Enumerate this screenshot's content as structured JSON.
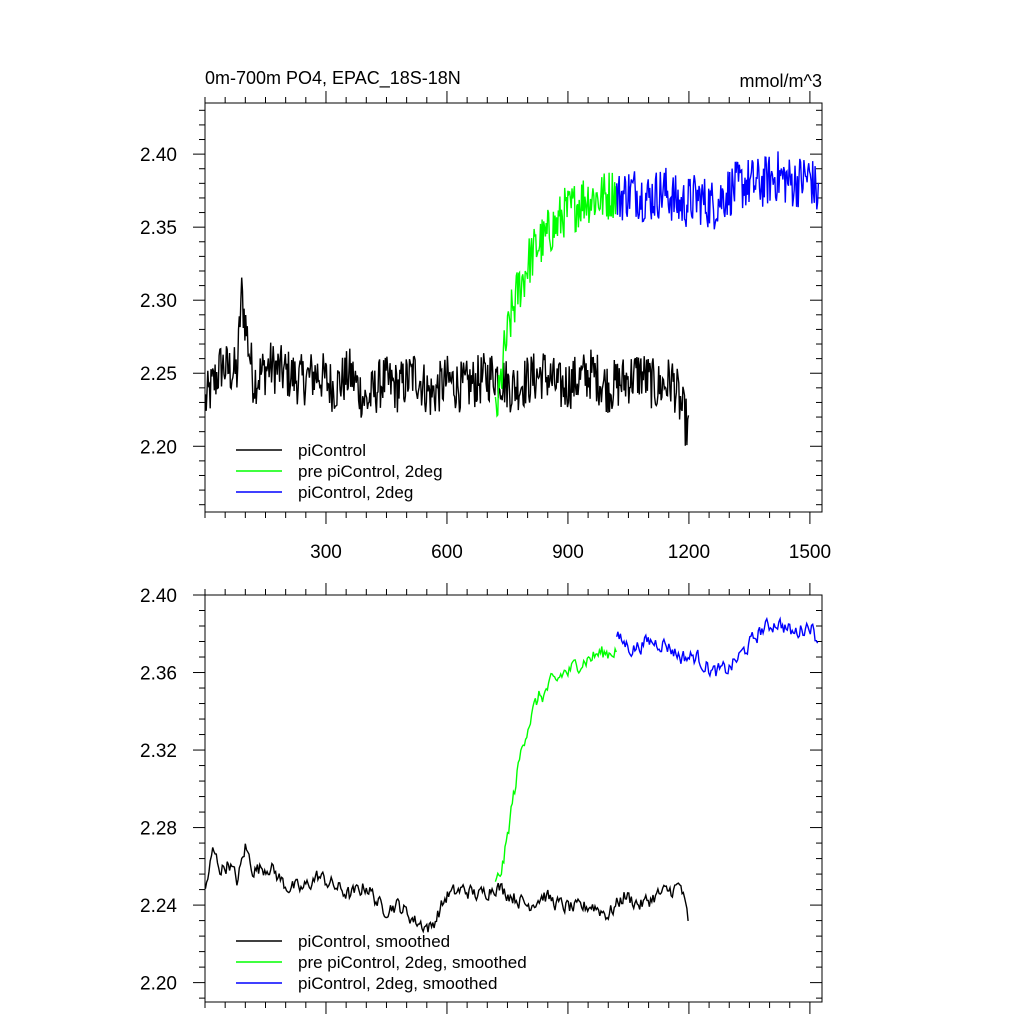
{
  "chart_data": [
    {
      "type": "line",
      "title": "0m-700m PO4, EPAC_18S-18N",
      "units": "mmol/m^3",
      "xlim": [
        0,
        1530
      ],
      "ylim": [
        2.155,
        2.435
      ],
      "xticks": [
        300,
        600,
        900,
        1200,
        1500
      ],
      "yticks": [
        2.2,
        2.25,
        2.3,
        2.35,
        2.4
      ],
      "ytick_labels": [
        "2.20",
        "2.25",
        "2.30",
        "2.35",
        "2.40"
      ],
      "grid": false,
      "legend_position": "bottom-left",
      "series": [
        {
          "name": "piControl",
          "color": "#000000",
          "x": [
            1,
            40,
            80,
            90,
            120,
            160,
            200,
            240,
            280,
            320,
            360,
            400,
            440,
            480,
            520,
            560,
            600,
            640,
            680,
            720,
            760,
            800,
            840,
            880,
            920,
            960,
            1000,
            1040,
            1080,
            1120,
            1160,
            1200
          ],
          "y": [
            2.23,
            2.255,
            2.25,
            2.305,
            2.245,
            2.255,
            2.25,
            2.245,
            2.25,
            2.24,
            2.25,
            2.23,
            2.245,
            2.24,
            2.25,
            2.235,
            2.245,
            2.24,
            2.245,
            2.25,
            2.24,
            2.245,
            2.25,
            2.24,
            2.245,
            2.25,
            2.24,
            2.245,
            2.25,
            2.24,
            2.245,
            2.21
          ]
        },
        {
          "name": "pre piControl, 2deg",
          "color": "#00ff00",
          "x": [
            720,
            730,
            740,
            750,
            760,
            770,
            780,
            790,
            800,
            810,
            820,
            830,
            840,
            850,
            860,
            870,
            880,
            890,
            900,
            920,
            940,
            960,
            980,
            1000,
            1020
          ],
          "y": [
            2.22,
            2.235,
            2.26,
            2.275,
            2.29,
            2.3,
            2.31,
            2.315,
            2.325,
            2.33,
            2.335,
            2.34,
            2.34,
            2.345,
            2.35,
            2.35,
            2.355,
            2.36,
            2.36,
            2.365,
            2.37,
            2.37,
            2.37,
            2.372,
            2.375
          ]
        },
        {
          "name": "piControl, 2deg",
          "color": "#0000ff",
          "x": [
            1021,
            1060,
            1100,
            1140,
            1180,
            1220,
            1260,
            1300,
            1340,
            1380,
            1420,
            1460,
            1500,
            1521
          ],
          "y": [
            2.37,
            2.375,
            2.37,
            2.375,
            2.365,
            2.37,
            2.365,
            2.375,
            2.38,
            2.38,
            2.385,
            2.38,
            2.385,
            2.37
          ]
        }
      ]
    },
    {
      "type": "line",
      "title": "",
      "xlim": [
        0,
        1530
      ],
      "ylim": [
        2.19,
        2.4
      ],
      "xticks": [
        300,
        600,
        900,
        1200,
        1500
      ],
      "yticks": [
        2.2,
        2.24,
        2.28,
        2.32,
        2.36,
        2.4
      ],
      "ytick_labels": [
        "2.20",
        "2.24",
        "2.28",
        "2.32",
        "2.36",
        "2.40"
      ],
      "grid": false,
      "legend_position": "bottom-left",
      "series": [
        {
          "name": "piControl, smoothed",
          "color": "#000000",
          "x": [
            1,
            20,
            40,
            60,
            80,
            100,
            120,
            160,
            200,
            240,
            280,
            320,
            360,
            400,
            440,
            480,
            520,
            560,
            600,
            640,
            680,
            720,
            760,
            800,
            840,
            880,
            920,
            960,
            1000,
            1040,
            1080,
            1120,
            1160,
            1180,
            1200
          ],
          "y": [
            2.248,
            2.268,
            2.258,
            2.262,
            2.252,
            2.27,
            2.258,
            2.26,
            2.25,
            2.248,
            2.255,
            2.25,
            2.245,
            2.25,
            2.238,
            2.24,
            2.232,
            2.228,
            2.245,
            2.248,
            2.245,
            2.25,
            2.245,
            2.24,
            2.245,
            2.24,
            2.238,
            2.24,
            2.235,
            2.245,
            2.24,
            2.245,
            2.248,
            2.25,
            2.23
          ]
        },
        {
          "name": "pre piControl, 2deg, smoothed",
          "color": "#00ff00",
          "x": [
            720,
            730,
            740,
            750,
            760,
            770,
            780,
            790,
            800,
            810,
            820,
            830,
            840,
            850,
            860,
            870,
            880,
            890,
            900,
            920,
            940,
            960,
            980,
            1000,
            1020
          ],
          "y": [
            2.25,
            2.255,
            2.262,
            2.275,
            2.29,
            2.302,
            2.315,
            2.325,
            2.332,
            2.338,
            2.344,
            2.348,
            2.348,
            2.352,
            2.355,
            2.355,
            2.358,
            2.36,
            2.36,
            2.364,
            2.366,
            2.368,
            2.37,
            2.37,
            2.372
          ]
        },
        {
          "name": "piControl, 2deg, smoothed",
          "color": "#0000ff",
          "x": [
            1021,
            1060,
            1100,
            1140,
            1180,
            1220,
            1260,
            1300,
            1340,
            1380,
            1420,
            1460,
            1500,
            1521
          ],
          "y": [
            2.378,
            2.372,
            2.376,
            2.375,
            2.368,
            2.368,
            2.36,
            2.362,
            2.372,
            2.382,
            2.386,
            2.38,
            2.385,
            2.376
          ]
        }
      ]
    }
  ]
}
